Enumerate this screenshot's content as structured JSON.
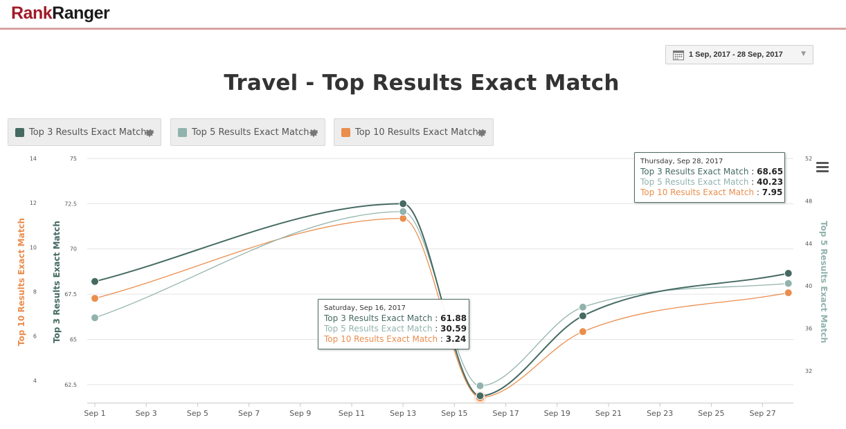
{
  "header": {
    "logo_part1": "Rank",
    "logo_part2": "Ranger"
  },
  "date_range": {
    "label": "1 Sep, 2017 - 28 Sep, 2017",
    "icon": "calendar-icon"
  },
  "chart_data": {
    "type": "line",
    "title": "Travel - Top Results Exact Match",
    "x_tick_labels": [
      "Sep 1",
      "Sep 3",
      "Sep 5",
      "Sep 7",
      "Sep 9",
      "Sep 11",
      "Sep 13",
      "Sep 15",
      "Sep 17",
      "Sep 19",
      "Sep 21",
      "Sep 23",
      "Sep 25",
      "Sep 27"
    ],
    "x_range": [
      "Sep 1",
      "Sep 28"
    ],
    "grid": true,
    "series": [
      {
        "name": "Top 3 Results Exact Match",
        "color": "#456a62",
        "axis": "Top 3 Results Exact Match",
        "points": [
          {
            "date": "Sep 1",
            "value": 68.2
          },
          {
            "date": "Sep 13",
            "value": 72.5
          },
          {
            "date": "Sep 16",
            "value": 61.88
          },
          {
            "date": "Sep 20",
            "value": 66.3
          },
          {
            "date": "Sep 28",
            "value": 68.65
          }
        ]
      },
      {
        "name": "Top 5 Results Exact Match",
        "color": "#92b3ad",
        "axis": "Top 5 Results Exact Match",
        "points": [
          {
            "date": "Sep 1",
            "value": 37.0
          },
          {
            "date": "Sep 13",
            "value": 47.0
          },
          {
            "date": "Sep 16",
            "value": 30.59
          },
          {
            "date": "Sep 20",
            "value": 38.0
          },
          {
            "date": "Sep 28",
            "value": 40.23
          }
        ]
      },
      {
        "name": "Top 10 Results Exact Match",
        "color": "#ea8e4e",
        "axis": "Top 10 Results Exact Match",
        "points": [
          {
            "date": "Sep 1",
            "value": 7.7
          },
          {
            "date": "Sep 13",
            "value": 11.3
          },
          {
            "date": "Sep 16",
            "value": 3.24
          },
          {
            "date": "Sep 20",
            "value": 6.2
          },
          {
            "date": "Sep 28",
            "value": 7.95
          }
        ]
      }
    ],
    "axes": [
      {
        "id": "Top 10 Results Exact Match",
        "side": "left-outer",
        "label": "Top 10 Results Exact Match",
        "color": "#ea8e4e",
        "range": [
          3,
          14
        ],
        "ticks": [
          "4",
          "6",
          "8",
          "10",
          "12",
          "14"
        ]
      },
      {
        "id": "Top 3 Results Exact Match",
        "side": "left-inner",
        "label": "Top 3 Results Exact Match",
        "color": "#456a62",
        "range": [
          61.5,
          75
        ],
        "ticks": [
          "62.5",
          "65",
          "67.5",
          "70",
          "72.5",
          "75"
        ]
      },
      {
        "id": "Top 5 Results Exact Match",
        "side": "right",
        "label": "Top 5 Results Exact Match",
        "color": "#92b3ad",
        "range": [
          29,
          52
        ],
        "ticks": [
          "32",
          "36",
          "40",
          "44",
          "48",
          "52"
        ]
      }
    ],
    "legend_placement": "top-left",
    "tooltips": [
      {
        "date": "Saturday, Sep 16, 2017",
        "rows": [
          {
            "label": "Top 3 Results Exact Match",
            "value": "61.88",
            "color": "#456a62"
          },
          {
            "label": "Top 5 Results Exact Match",
            "value": "30.59",
            "color": "#92b3ad"
          },
          {
            "label": "Top 10 Results Exact Match",
            "value": "3.24",
            "color": "#ea8e4e"
          }
        ]
      },
      {
        "date": "Thursday, Sep 28, 2017",
        "rows": [
          {
            "label": "Top 3 Results Exact Match",
            "value": "68.65",
            "color": "#456a62"
          },
          {
            "label": "Top 5 Results Exact Match",
            "value": "40.23",
            "color": "#92b3ad"
          },
          {
            "label": "Top 10 Results Exact Match",
            "value": "7.95",
            "color": "#ea8e4e"
          }
        ]
      }
    ]
  },
  "legend": [
    {
      "label": "Top 3 Results Exact Match",
      "color": "#456a62",
      "icon": "gear-icon"
    },
    {
      "label": "Top 5 Results Exact Match",
      "color": "#92b3ad",
      "icon": "gear-icon"
    },
    {
      "label": "Top 10 Results Exact Match",
      "color": "#ea8e4e",
      "icon": "gear-icon"
    }
  ],
  "menu": {
    "icon": "hamburger-menu-icon"
  }
}
